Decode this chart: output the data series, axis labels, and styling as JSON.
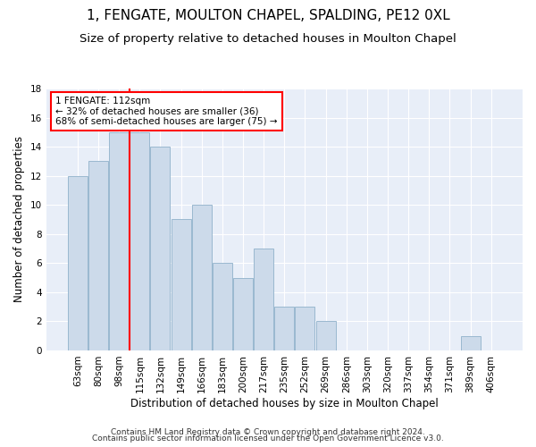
{
  "title": "1, FENGATE, MOULTON CHAPEL, SPALDING, PE12 0XL",
  "subtitle": "Size of property relative to detached houses in Moulton Chapel",
  "xlabel": "Distribution of detached houses by size in Moulton Chapel",
  "ylabel": "Number of detached properties",
  "footnote1": "Contains HM Land Registry data © Crown copyright and database right 2024.",
  "footnote2": "Contains public sector information licensed under the Open Government Licence v3.0.",
  "annotation_line1": "1 FENGATE: 112sqm",
  "annotation_line2": "← 32% of detached houses are smaller (36)",
  "annotation_line3": "68% of semi-detached houses are larger (75) →",
  "bar_color": "#ccdaea",
  "bar_edge_color": "#9ab8cf",
  "vline_color": "red",
  "vline_x_index": 3,
  "categories": [
    "63sqm",
    "80sqm",
    "98sqm",
    "115sqm",
    "132sqm",
    "149sqm",
    "166sqm",
    "183sqm",
    "200sqm",
    "217sqm",
    "235sqm",
    "252sqm",
    "269sqm",
    "286sqm",
    "303sqm",
    "320sqm",
    "337sqm",
    "354sqm",
    "371sqm",
    "389sqm",
    "406sqm"
  ],
  "values": [
    12,
    13,
    15,
    15,
    14,
    9,
    10,
    6,
    5,
    7,
    3,
    3,
    2,
    0,
    0,
    0,
    0,
    0,
    0,
    1,
    0
  ],
  "ylim": [
    0,
    18
  ],
  "yticks": [
    0,
    2,
    4,
    6,
    8,
    10,
    12,
    14,
    16,
    18
  ],
  "background_color": "#e8eef8",
  "title_fontsize": 11,
  "subtitle_fontsize": 9.5,
  "axis_label_fontsize": 8.5,
  "tick_fontsize": 7.5,
  "annotation_fontsize": 7.5,
  "footnote_fontsize": 6.5
}
